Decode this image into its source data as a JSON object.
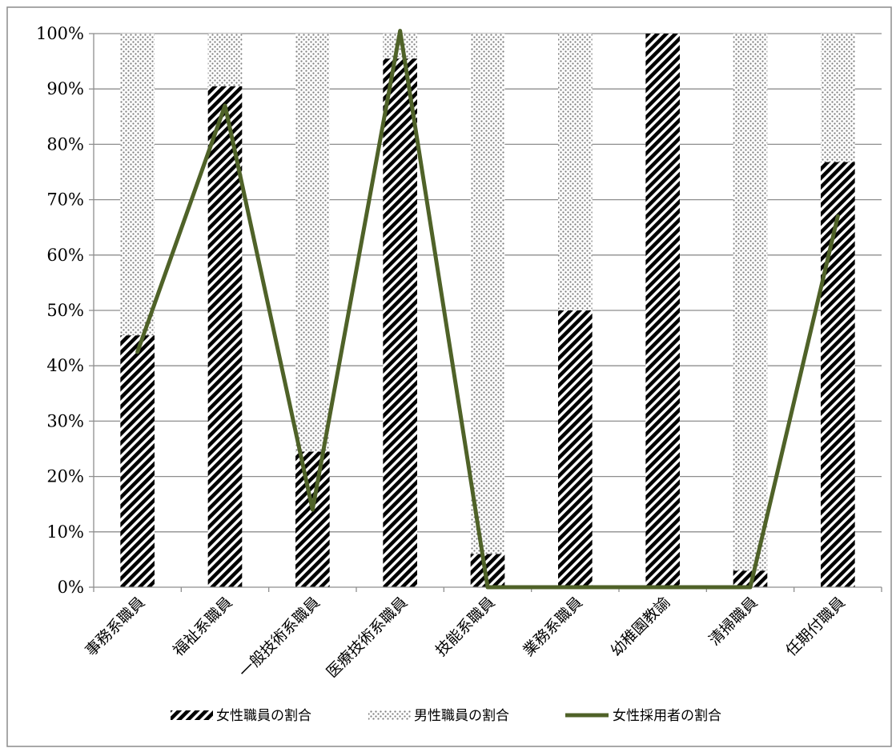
{
  "chart_data": {
    "type": "bar",
    "stacked": true,
    "title": "",
    "xlabel": "",
    "ylabel": "",
    "ylim": [
      0,
      100
    ],
    "y_ticks": [
      "0%",
      "10%",
      "20%",
      "30%",
      "40%",
      "50%",
      "60%",
      "70%",
      "80%",
      "90%",
      "100%"
    ],
    "grid": true,
    "legend_position": "bottom",
    "categories": [
      "事務系職員",
      "福祉系職員",
      "一般技術系職員",
      "医療技術系職員",
      "技能系職員",
      "業務系職員",
      "幼稚園教諭",
      "清掃職員",
      "任期付職員"
    ],
    "series": [
      {
        "name": "女性職員の割合",
        "kind": "bar",
        "pattern": "diagonal-hatch",
        "color": "#000000",
        "values": [
          45.5,
          90.5,
          24.5,
          95.5,
          6,
          50,
          100,
          3,
          76.8
        ]
      },
      {
        "name": "男性職員の割合",
        "kind": "bar",
        "pattern": "dots",
        "color": "#808080",
        "values": [
          54.5,
          9.5,
          75.5,
          4.5,
          94,
          50,
          0,
          97,
          23.2
        ]
      },
      {
        "name": "女性採用者の割合",
        "kind": "line",
        "color": "#4f6228",
        "values": [
          42.5,
          87,
          14,
          100.5,
          0,
          0,
          0,
          0,
          67
        ]
      }
    ]
  }
}
